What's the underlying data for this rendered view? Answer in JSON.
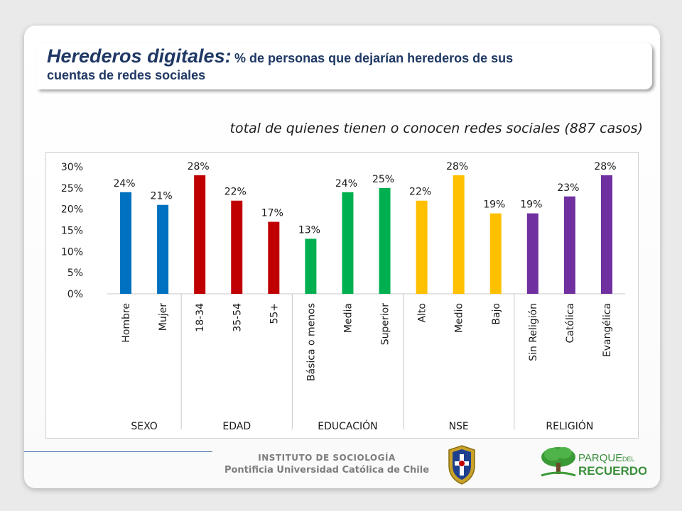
{
  "header": {
    "title_main": "Herederos digitales:",
    "title_rest": "% de personas que dejarían herederos de sus",
    "title_line2": "cuentas de redes sociales"
  },
  "subtitle": "total de quienes tienen o conocen redes sociales (887 casos)",
  "chart_data": {
    "type": "bar",
    "ylim": [
      0,
      30
    ],
    "yticks": [
      0,
      5,
      10,
      15,
      20,
      25,
      30
    ],
    "ytick_labels": [
      "0%",
      "5%",
      "10%",
      "15%",
      "20%",
      "25%",
      "30%"
    ],
    "grid": false,
    "bars": [
      {
        "category": "Hombre",
        "group": "SEXO",
        "value": 24,
        "label": "24%",
        "color": "#0070c0"
      },
      {
        "category": "Mujer",
        "group": "SEXO",
        "value": 21,
        "label": "21%",
        "color": "#0070c0"
      },
      {
        "category": "18-34",
        "group": "EDAD",
        "value": 28,
        "label": "28%",
        "color": "#c00000"
      },
      {
        "category": "35-54",
        "group": "EDAD",
        "value": 22,
        "label": "22%",
        "color": "#c00000"
      },
      {
        "category": "55+",
        "group": "EDAD",
        "value": 17,
        "label": "17%",
        "color": "#c00000"
      },
      {
        "category": "Básica o menos",
        "group": "EDUCACIÓN",
        "value": 13,
        "label": "13%",
        "color": "#00b050"
      },
      {
        "category": "Media",
        "group": "EDUCACIÓN",
        "value": 24,
        "label": "24%",
        "color": "#00b050"
      },
      {
        "category": "Superior",
        "group": "EDUCACIÓN",
        "value": 25,
        "label": "25%",
        "color": "#00b050"
      },
      {
        "category": "Alto",
        "group": "NSE",
        "value": 22,
        "label": "22%",
        "color": "#ffc000"
      },
      {
        "category": "Medio",
        "group": "NSE",
        "value": 28,
        "label": "28%",
        "color": "#ffc000"
      },
      {
        "category": "Bajo",
        "group": "NSE",
        "value": 19,
        "label": "19%",
        "color": "#ffc000"
      },
      {
        "category": "Sin Religión",
        "group": "RELIGIÓN",
        "value": 19,
        "label": "19%",
        "color": "#7030a0"
      },
      {
        "category": "Católica",
        "group": "RELIGIÓN",
        "value": 23,
        "label": "23%",
        "color": "#7030a0"
      },
      {
        "category": "Evangélica",
        "group": "RELIGIÓN",
        "value": 28,
        "label": "28%",
        "color": "#7030a0"
      }
    ],
    "groups": [
      "SEXO",
      "EDAD",
      "EDUCACIÓN",
      "NSE",
      "RELIGIÓN"
    ]
  },
  "footer": {
    "line1": "INSTITUTO DE SOCIOLOGÍA",
    "line2": "Pontificia Universidad Católica de Chile"
  },
  "logo": {
    "parque": "PARQUE",
    "del": "DEL",
    "recuerdo": "RECUERDO"
  }
}
